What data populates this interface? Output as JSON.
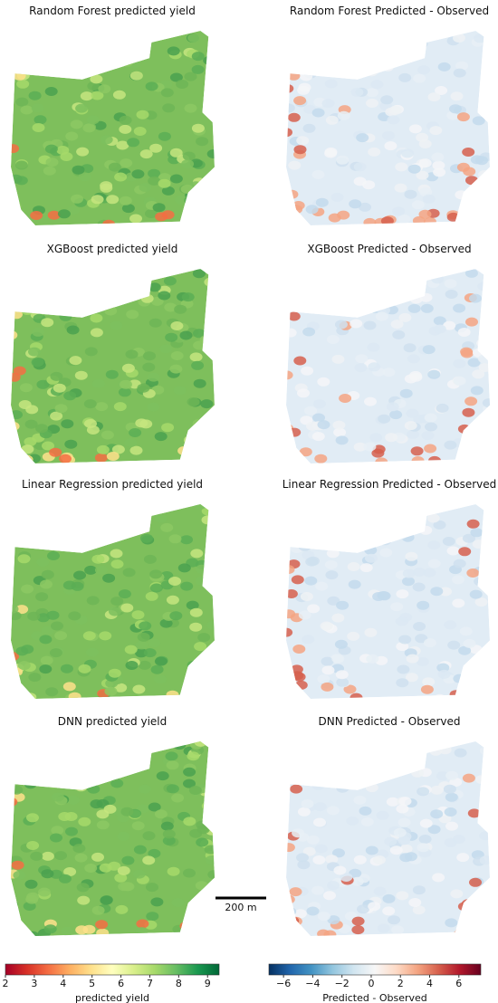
{
  "panels": [
    {
      "title": "Random Forest predicted yield"
    },
    {
      "title": "Random Forest Predicted - Observed"
    },
    {
      "title": "XGBoost predicted yield"
    },
    {
      "title": "XGBoost Predicted - Observed"
    },
    {
      "title": "Linear Regression predicted yield"
    },
    {
      "title": "Linear Regression Predicted - Observed"
    },
    {
      "title": "DNN predicted yield"
    },
    {
      "title": "DNN Predicted - Observed"
    }
  ],
  "scale_bar": {
    "label": "200 m"
  },
  "colorbars": [
    {
      "label": "predicted yield",
      "lim": [
        2,
        9.4
      ],
      "colors": [
        "#a50026",
        "#d73027",
        "#f46d43",
        "#fdae61",
        "#fee08b",
        "#ffffbf",
        "#d9ef8b",
        "#a6d96a",
        "#66bd63",
        "#1a9850",
        "#006837"
      ],
      "ticks": [
        2,
        3,
        4,
        5,
        6,
        7,
        8,
        9
      ]
    },
    {
      "label": "Predicted - Observed",
      "lim": [
        -7,
        7.5
      ],
      "colors": [
        "#053061",
        "#2166ac",
        "#4393c3",
        "#92c5de",
        "#d1e5f0",
        "#f7f7f7",
        "#fddbc7",
        "#f4a582",
        "#d6604d",
        "#b2182b",
        "#67001f"
      ],
      "ticks": [
        {
          "value": -6,
          "label": "−6"
        },
        {
          "value": -4,
          "label": "−4"
        },
        {
          "value": -2,
          "label": "−2"
        },
        0,
        2,
        4,
        6
      ]
    }
  ]
}
